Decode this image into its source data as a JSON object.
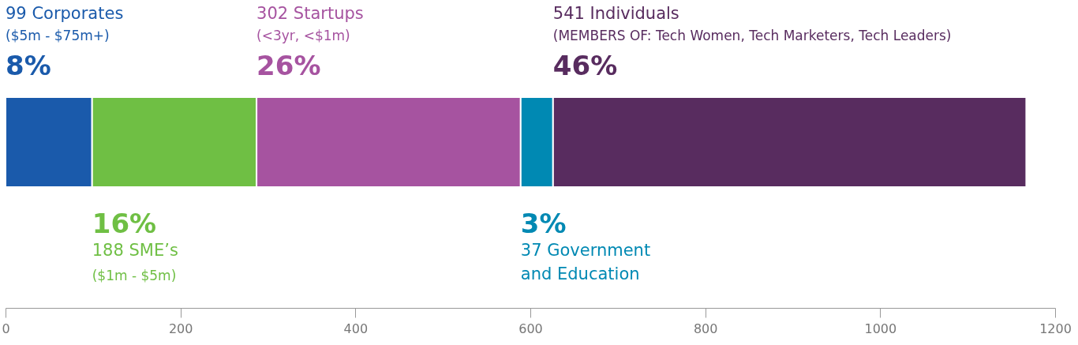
{
  "chart_data": {
    "type": "bar",
    "orientation": "horizontal",
    "stacked": true,
    "categories": [
      null
    ],
    "series": [
      {
        "name": "99 Corporates",
        "color": "#1a5aab",
        "values": [
          99
        ]
      },
      {
        "name": "188 SME’s",
        "color": "#6fbf44",
        "values": [
          188
        ]
      },
      {
        "name": "302 Startups",
        "color": "#a653a0",
        "values": [
          302
        ]
      },
      {
        "name": "37 Government\nand Education",
        "color": "#0089b3",
        "values": [
          37
        ]
      },
      {
        "name": "541 Individuals",
        "color": "#582c5f",
        "values": [
          541
        ]
      }
    ],
    "annotations": [
      "8%",
      "($5m - $75m+)",
      "16%",
      "($1m - $5m)",
      "26%",
      "(<3yr, <$1m)",
      "3%",
      "46%",
      "(MEMBERS OF: Tech Women, Tech Marketers, Tech Leaders)"
    ],
    "xlim": [
      0,
      1200
    ],
    "xticks": [
      0,
      200,
      400,
      600,
      800,
      1000,
      1200
    ]
  }
}
